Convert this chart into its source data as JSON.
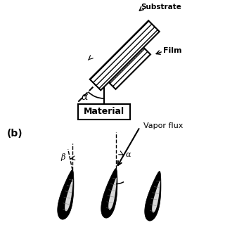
{
  "bg_color": "#ffffff",
  "panel_a": {
    "substrate_label": "Substrate",
    "film_label": "Film",
    "material_label": "Material",
    "alpha_label": "α"
  },
  "panel_b": {
    "label": "(b)",
    "beta_label": "β",
    "alpha_label": "α",
    "vapor_flux_label": "Vapor flux"
  }
}
